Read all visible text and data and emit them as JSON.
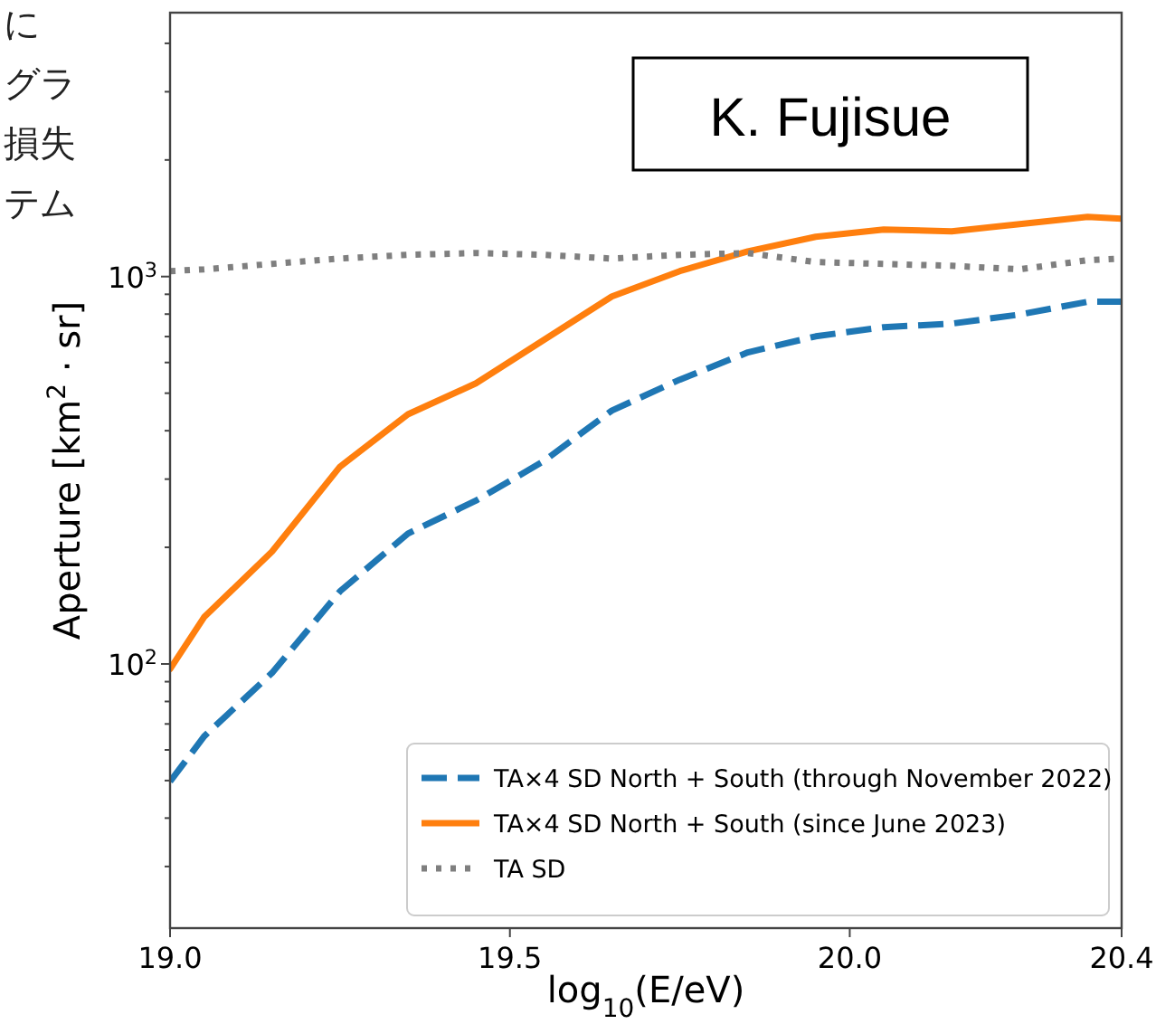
{
  "chart_data": {
    "type": "line",
    "xlabel": "log$_{10}$(E/eV)",
    "ylabel": "Aperture [km$^{2}$ · sr]",
    "annotations": [
      "K. Fujisue",
      "に",
      "グラ",
      "損失",
      "テム"
    ],
    "log": "y",
    "xlim": [
      19.0,
      20.4
    ],
    "xticks": [
      {
        "value": 19.0,
        "label": "19.0"
      },
      19.5,
      {
        "value": 20.0,
        "label": "20.0"
      },
      20.4
    ],
    "ylim": [
      20.8,
      4800
    ],
    "yticks": [
      {
        "value": 30,
        "label": null
      },
      {
        "value": 40,
        "label": null
      },
      {
        "value": 50,
        "label": null
      },
      {
        "value": 60,
        "label": null
      },
      {
        "value": 70,
        "label": null
      },
      {
        "value": 80,
        "label": null
      },
      {
        "value": 90,
        "label": null
      },
      {
        "value": 100,
        "label": "10$^{2}$"
      },
      {
        "value": 200,
        "label": null
      },
      {
        "value": 300,
        "label": null
      },
      {
        "value": 400,
        "label": null
      },
      {
        "value": 500,
        "label": null
      },
      {
        "value": 600,
        "label": null
      },
      {
        "value": 700,
        "label": null
      },
      {
        "value": 800,
        "label": null
      },
      {
        "value": 900,
        "label": null
      },
      {
        "value": 1000,
        "label": "10$^{3}$"
      },
      {
        "value": 2000,
        "label": null
      },
      {
        "value": 3000,
        "label": null
      },
      {
        "value": 4000,
        "label": null
      }
    ],
    "x": [
      19.0,
      19.05,
      19.15,
      19.25,
      19.35,
      19.45,
      19.55,
      19.65,
      19.75,
      19.85,
      19.95,
      20.05,
      20.15,
      20.25,
      20.35,
      20.4
    ],
    "legend": "bottom right",
    "grid": false,
    "series": [
      {
        "name": "TA×4 SD North + South (through November 2022)",
        "color": "#1f77b4",
        "line_style": "dashed",
        "values": [
          49.7,
          65,
          94.8,
          154,
          217,
          264,
          334,
          451,
          542,
          637,
          701,
          740,
          756,
          798,
          861,
          861
        ]
      },
      {
        "name": "TA×4 SD North + South (since June 2023)",
        "color": "#ff7f0e",
        "line_style": "solid",
        "values": [
          97,
          132,
          195,
          323,
          441,
          530,
          686,
          888,
          1033,
          1162,
          1267,
          1322,
          1309,
          1366,
          1426,
          1411
        ]
      },
      {
        "name": "TA SD",
        "color": "#7f7f7f",
        "line_style": "dotted",
        "values": [
          1033,
          1044,
          1078,
          1113,
          1138,
          1150,
          1138,
          1113,
          1138,
          1150,
          1090,
          1078,
          1066,
          1044,
          1102,
          1113
        ]
      }
    ]
  }
}
